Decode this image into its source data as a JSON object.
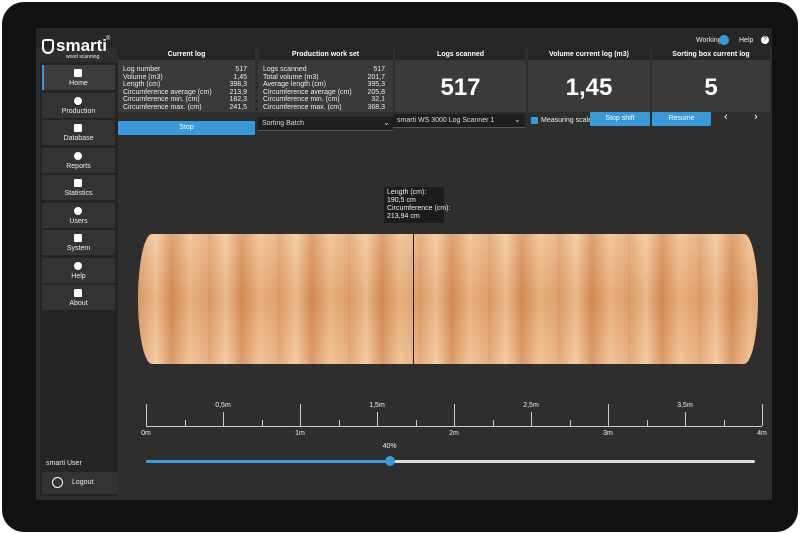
{
  "header": {
    "logo": "smarti",
    "logo_mark": "®",
    "tagline": "wood scanning",
    "status": "Working",
    "help": "Help"
  },
  "sidebar": {
    "items": [
      "Home",
      "Production",
      "Database",
      "Reports",
      "Statistics",
      "Users",
      "System",
      "Help",
      "About"
    ],
    "user": "smarti User",
    "logout": "Logout"
  },
  "current_log": {
    "title": "Current log",
    "rows": [
      [
        "Log number",
        "517"
      ],
      [
        "Volume (m3)",
        "1,45"
      ],
      [
        "Length (cm)",
        "398,3"
      ],
      [
        "Circumference average (cm)",
        "213,9"
      ],
      [
        "Circumference min. (cm)",
        "182,3"
      ],
      [
        "Circumference max. (cm)",
        "241,5"
      ]
    ],
    "button": "Stop"
  },
  "work_set": {
    "title": "Production work set",
    "rows": [
      [
        "Logs scanned",
        "517"
      ],
      [
        "Total volume (m3)",
        "201,7"
      ],
      [
        "Average length (cm)",
        "395,3"
      ],
      [
        "Circumference average (cm)",
        "205,8"
      ],
      [
        "Circumference min. (cm)",
        "32,1"
      ],
      [
        "Circumference max. (cm)",
        "368,3"
      ]
    ],
    "select": "Sorting Batch"
  },
  "logs_scanned": {
    "title": "Logs scanned",
    "value": "517",
    "select": "smarti WS 3000 Log Scanner 1"
  },
  "volume": {
    "title": "Volume current log (m3)",
    "value": "1,45",
    "checkbox": "Measuring scale",
    "button": "Stop shift"
  },
  "sorting_box": {
    "title": "Sorting box current log",
    "value": "5",
    "button": "Resume"
  },
  "tooltip": {
    "lines": [
      "Length (cm):",
      "190,5 cm",
      "Circumference (cm):",
      "213,94 cm"
    ]
  },
  "scale": {
    "ticks": [
      "0m",
      "0,5m",
      "1m",
      "1,5m",
      "2m",
      "2,5m",
      "3m",
      "3,5m",
      "4m"
    ]
  },
  "slider": {
    "value": 40,
    "label": "40%"
  }
}
